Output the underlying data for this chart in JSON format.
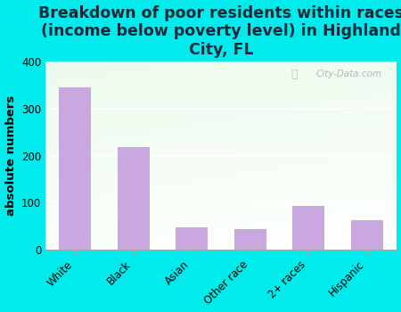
{
  "categories": [
    "White",
    "Black",
    "Asian",
    "Other race",
    "2+ races",
    "Hispanic"
  ],
  "values": [
    345,
    218,
    47,
    44,
    93,
    63
  ],
  "bar_color": "#c9a8e0",
  "title": "Breakdown of poor residents within races\n(income below poverty level) in Highland\nCity, FL",
  "ylabel": "absolute numbers",
  "ylim": [
    0,
    400
  ],
  "yticks": [
    0,
    100,
    200,
    300,
    400
  ],
  "bg_outer": "#00ecec",
  "watermark": "City-Data.com",
  "title_fontsize": 12.5,
  "ylabel_fontsize": 9.5,
  "tick_fontsize": 8.5,
  "title_color": "#1a2a3a"
}
